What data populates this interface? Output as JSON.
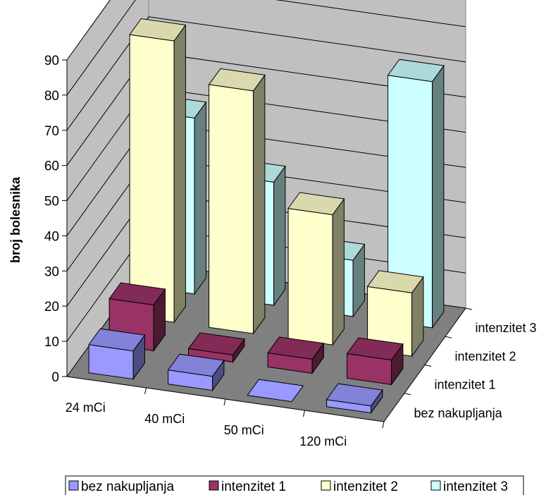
{
  "chart_data": {
    "type": "bar",
    "title": "",
    "xlabel": "",
    "ylabel": "broj bolesnika",
    "ylim": [
      0,
      90
    ],
    "yticks": [
      "0",
      "10",
      "20",
      "30",
      "40",
      "50",
      "60",
      "70",
      "80",
      "90"
    ],
    "categories": [
      "24 mCi",
      "40 mCi",
      "50 mCi",
      "120 mCi"
    ],
    "grid": true,
    "legend_position": "bottom",
    "series": [
      {
        "name": "bez nakupljanja",
        "values": [
          8,
          4,
          0,
          2
        ],
        "color": "#9999ff"
      },
      {
        "name": "intenzitet 1",
        "values": [
          13,
          2,
          4,
          7
        ],
        "color": "#993366"
      },
      {
        "name": "intenzitet 2",
        "values": [
          80,
          69,
          37,
          18
        ],
        "color": "#ffffcc"
      },
      {
        "name": "intenzitet 3",
        "values": [
          50,
          35,
          16,
          70
        ],
        "color": "#ccffff"
      }
    ]
  }
}
